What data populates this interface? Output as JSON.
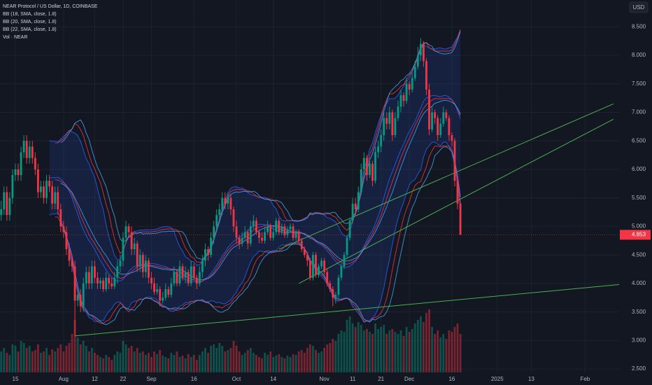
{
  "chart_data": {
    "type": "candlestick",
    "title": "NEAR Protocol / US Dollar, 1D, COINBASE",
    "currency": "USD",
    "indicators": [
      {
        "label": "BB (18, SMA, close, 1.8)",
        "period": 18,
        "mult": 1.8,
        "color": "#2962ff"
      },
      {
        "label": "BB (20, SMA, close, 1.8)",
        "period": 20,
        "mult": 1.8,
        "color": "#f23645"
      },
      {
        "label": "BB (22, SMA, close, 1.8)",
        "period": 22,
        "mult": 1.8,
        "color": "#42a5f5"
      }
    ],
    "volume_label": "Vol · NEAR",
    "up_color": "#089981",
    "down_color": "#f23645",
    "xlim": [
      "2024-07-10",
      "2025-02-13"
    ],
    "xticks": [
      {
        "value": "2024-07-15",
        "label": "15"
      },
      {
        "value": "2024-08-01",
        "label": "Aug"
      },
      {
        "value": "2024-08-12",
        "label": "12"
      },
      {
        "value": "2024-08-22",
        "label": "22"
      },
      {
        "value": "2024-09-01",
        "label": "Sep"
      },
      {
        "value": "2024-09-16",
        "label": "16"
      },
      {
        "value": "2024-10-01",
        "label": "Oct"
      },
      {
        "value": "2024-10-14",
        "label": "14"
      },
      {
        "value": "2024-11-01",
        "label": "Nov"
      },
      {
        "value": "2024-11-11",
        "label": "11"
      },
      {
        "value": "2024-11-21",
        "label": "21"
      },
      {
        "value": "2024-12-01",
        "label": "Dec"
      },
      {
        "value": "2024-12-16",
        "label": "16"
      },
      {
        "value": "2025-01-01",
        "label": "2025"
      },
      {
        "value": "2025-01-13",
        "label": "13"
      },
      {
        "value": "2025-02-01",
        "label": "Feb"
      }
    ],
    "ylim": [
      2.44,
      8.97
    ],
    "yticks": [
      {
        "value": 2.5,
        "label": "2.500"
      },
      {
        "value": 3,
        "label": "3.000"
      },
      {
        "value": 3.5,
        "label": "3.500"
      },
      {
        "value": 4,
        "label": "4.000"
      },
      {
        "value": 4.5,
        "label": "4.500"
      },
      {
        "value": 5,
        "label": "5.000"
      },
      {
        "value": 5.5,
        "label": "5.500"
      },
      {
        "value": 6,
        "label": "6.000"
      },
      {
        "value": 6.5,
        "label": "6.500"
      },
      {
        "value": 7,
        "label": "7.000"
      },
      {
        "value": 7.5,
        "label": "7.500"
      },
      {
        "value": 8,
        "label": "8.000"
      },
      {
        "value": 8.5,
        "label": "8.500"
      }
    ],
    "grid": true,
    "trendlines": [
      {
        "x": [
          "2024-08-05",
          "2025-02-13"
        ],
        "y": [
          3.08,
          3.98
        ],
        "color": "#4caf50"
      },
      {
        "x": [
          "2024-10-23",
          "2025-02-11"
        ],
        "y": [
          4.0,
          6.88
        ],
        "color": "#4caf50"
      },
      {
        "x": [
          "2024-10-16",
          "2025-02-11"
        ],
        "y": [
          4.6,
          7.15
        ],
        "color": "#4caf50"
      }
    ],
    "ohlc": [
      [
        5.2,
        5.45,
        5.1,
        5.3
      ],
      [
        5.3,
        5.7,
        5.2,
        5.6
      ],
      [
        5.6,
        5.7,
        5.1,
        5.2
      ],
      [
        5.2,
        5.6,
        5.1,
        5.5
      ],
      [
        5.5,
        6.0,
        5.4,
        5.9
      ],
      [
        5.9,
        6.1,
        5.8,
        6.0
      ],
      [
        6.0,
        6.1,
        5.8,
        5.9
      ],
      [
        5.9,
        6.4,
        5.8,
        6.3
      ],
      [
        6.3,
        6.6,
        6.2,
        6.5
      ],
      [
        6.5,
        6.6,
        6.1,
        6.2
      ],
      [
        6.2,
        6.5,
        6.1,
        6.4
      ],
      [
        6.4,
        6.5,
        6.1,
        6.2
      ],
      [
        6.2,
        6.3,
        5.9,
        6.0
      ],
      [
        6.0,
        6.1,
        5.5,
        5.6
      ],
      [
        5.6,
        5.8,
        5.5,
        5.7
      ],
      [
        5.7,
        5.8,
        5.4,
        5.5
      ],
      [
        5.5,
        5.9,
        5.4,
        5.8
      ],
      [
        5.8,
        5.9,
        5.6,
        5.7
      ],
      [
        5.7,
        5.8,
        5.3,
        5.4
      ],
      [
        5.4,
        5.7,
        5.3,
        5.6
      ],
      [
        5.6,
        5.7,
        5.2,
        5.3
      ],
      [
        5.3,
        5.4,
        4.9,
        5.0
      ],
      [
        5.0,
        5.1,
        4.8,
        4.9
      ],
      [
        4.9,
        5.0,
        4.5,
        4.6
      ],
      [
        4.6,
        4.7,
        4.3,
        4.4
      ],
      [
        4.4,
        4.5,
        4.2,
        4.3
      ],
      [
        4.3,
        4.4,
        3.08,
        3.7
      ],
      [
        3.7,
        3.9,
        3.6,
        3.8
      ],
      [
        3.8,
        3.9,
        3.5,
        3.6
      ],
      [
        3.6,
        4.1,
        3.5,
        4.0
      ],
      [
        4.0,
        4.3,
        3.9,
        4.2
      ],
      [
        4.2,
        4.3,
        3.9,
        4.0
      ],
      [
        4.0,
        4.4,
        3.9,
        4.3
      ],
      [
        4.3,
        4.4,
        4.0,
        4.1
      ],
      [
        4.1,
        4.2,
        3.9,
        4.0
      ],
      [
        4.0,
        4.1,
        3.9,
        4.05
      ],
      [
        4.05,
        4.1,
        3.85,
        3.9
      ],
      [
        3.9,
        4.2,
        3.85,
        4.1
      ],
      [
        4.1,
        4.15,
        3.9,
        4.0
      ],
      [
        4.0,
        4.1,
        3.9,
        3.95
      ],
      [
        3.95,
        4.2,
        3.9,
        4.1
      ],
      [
        4.1,
        4.4,
        4.0,
        4.3
      ],
      [
        4.3,
        4.5,
        4.2,
        4.4
      ],
      [
        4.4,
        4.9,
        4.3,
        4.8
      ],
      [
        4.8,
        5.1,
        4.7,
        5.0
      ],
      [
        5.0,
        5.05,
        4.8,
        4.9
      ],
      [
        4.9,
        5.0,
        4.5,
        4.6
      ],
      [
        4.6,
        4.8,
        4.5,
        4.7
      ],
      [
        4.7,
        4.75,
        4.2,
        4.3
      ],
      [
        4.3,
        4.6,
        4.2,
        4.5
      ],
      [
        4.5,
        4.55,
        4.1,
        4.2
      ],
      [
        4.2,
        4.5,
        4.1,
        4.4
      ],
      [
        4.4,
        4.45,
        4.0,
        4.1
      ],
      [
        4.1,
        4.2,
        3.9,
        4.0
      ],
      [
        4.0,
        4.1,
        3.8,
        3.85
      ],
      [
        3.85,
        4.0,
        3.8,
        3.9
      ],
      [
        3.9,
        3.95,
        3.6,
        3.7
      ],
      [
        3.7,
        3.85,
        3.65,
        3.75
      ],
      [
        3.75,
        4.0,
        3.7,
        3.9
      ],
      [
        3.9,
        3.95,
        3.75,
        3.8
      ],
      [
        3.8,
        4.1,
        3.75,
        4.0
      ],
      [
        4.0,
        4.3,
        3.95,
        4.2
      ],
      [
        4.2,
        4.25,
        3.95,
        4.0
      ],
      [
        4.0,
        4.4,
        3.95,
        4.3
      ],
      [
        4.3,
        4.35,
        4.05,
        4.1
      ],
      [
        4.1,
        4.3,
        4.0,
        4.2
      ],
      [
        4.2,
        4.25,
        3.95,
        4.0
      ],
      [
        4.0,
        4.4,
        3.95,
        4.3
      ],
      [
        4.3,
        4.35,
        4.05,
        4.1
      ],
      [
        4.1,
        4.15,
        3.9,
        4.0
      ],
      [
        4.0,
        4.3,
        3.95,
        4.2
      ],
      [
        4.2,
        4.5,
        4.1,
        4.4
      ],
      [
        4.4,
        4.7,
        4.3,
        4.6
      ],
      [
        4.6,
        4.65,
        4.4,
        4.5
      ],
      [
        4.5,
        4.9,
        4.45,
        4.8
      ],
      [
        4.8,
        5.1,
        4.7,
        5.0
      ],
      [
        5.0,
        5.3,
        4.9,
        5.2
      ],
      [
        5.2,
        5.4,
        5.1,
        5.3
      ],
      [
        5.3,
        5.6,
        5.2,
        5.5
      ],
      [
        5.5,
        5.6,
        5.3,
        5.4
      ],
      [
        5.4,
        5.6,
        5.3,
        5.5
      ],
      [
        5.5,
        5.55,
        5.2,
        5.3
      ],
      [
        5.3,
        5.35,
        4.9,
        5.0
      ],
      [
        5.0,
        5.1,
        4.7,
        4.8
      ],
      [
        4.8,
        4.85,
        4.6,
        4.7
      ],
      [
        4.7,
        4.9,
        4.65,
        4.8
      ],
      [
        4.8,
        5.0,
        4.75,
        4.9
      ],
      [
        4.9,
        4.95,
        4.6,
        4.7
      ],
      [
        4.7,
        5.1,
        4.65,
        5.0
      ],
      [
        5.0,
        5.2,
        4.95,
        5.1
      ],
      [
        5.1,
        5.15,
        4.85,
        4.9
      ],
      [
        4.9,
        4.95,
        4.7,
        4.8
      ],
      [
        4.8,
        4.9,
        4.7,
        4.75
      ],
      [
        4.75,
        5.0,
        4.7,
        4.9
      ],
      [
        4.9,
        5.1,
        4.85,
        5.0
      ],
      [
        5.0,
        5.05,
        4.75,
        4.8
      ],
      [
        4.8,
        5.0,
        4.75,
        4.9
      ],
      [
        4.9,
        5.15,
        4.85,
        5.1
      ],
      [
        5.1,
        5.15,
        4.85,
        4.9
      ],
      [
        4.9,
        5.05,
        4.85,
        5.0
      ],
      [
        5.0,
        5.05,
        4.8,
        4.85
      ],
      [
        4.85,
        5.0,
        4.8,
        4.95
      ],
      [
        4.95,
        5.05,
        4.9,
        5.0
      ],
      [
        5.0,
        5.05,
        4.75,
        4.8
      ],
      [
        4.8,
        4.95,
        4.75,
        4.9
      ],
      [
        4.9,
        4.95,
        4.7,
        4.75
      ],
      [
        4.75,
        4.8,
        4.55,
        4.6
      ],
      [
        4.6,
        4.65,
        4.45,
        4.5
      ],
      [
        4.5,
        4.55,
        4.3,
        4.4
      ],
      [
        4.4,
        4.45,
        4.05,
        4.1
      ],
      [
        4.1,
        4.55,
        4.05,
        4.5
      ],
      [
        4.5,
        4.55,
        4.1,
        4.15
      ],
      [
        4.15,
        4.35,
        4.1,
        4.3
      ],
      [
        4.3,
        4.45,
        4.25,
        4.4
      ],
      [
        4.4,
        4.45,
        4.15,
        4.2
      ],
      [
        4.2,
        4.25,
        3.95,
        4.0
      ],
      [
        4.0,
        4.05,
        3.85,
        3.9
      ],
      [
        3.9,
        3.95,
        3.6,
        3.75
      ],
      [
        3.75,
        3.85,
        3.65,
        3.8
      ],
      [
        3.8,
        4.15,
        3.75,
        4.1
      ],
      [
        4.1,
        4.35,
        4.05,
        4.3
      ],
      [
        4.3,
        4.55,
        4.25,
        4.5
      ],
      [
        4.5,
        4.85,
        4.45,
        4.8
      ],
      [
        4.8,
        5.15,
        4.75,
        5.1
      ],
      [
        5.1,
        5.5,
        5.05,
        5.4
      ],
      [
        5.4,
        5.5,
        5.2,
        5.3
      ],
      [
        5.3,
        5.7,
        5.25,
        5.6
      ],
      [
        5.6,
        6.1,
        5.55,
        6.0
      ],
      [
        6.0,
        6.3,
        5.9,
        6.2
      ],
      [
        6.2,
        6.25,
        5.8,
        5.9
      ],
      [
        5.9,
        6.2,
        5.85,
        6.1
      ],
      [
        6.1,
        6.15,
        5.7,
        5.8
      ],
      [
        5.8,
        6.4,
        5.75,
        6.3
      ],
      [
        6.3,
        6.5,
        6.2,
        6.4
      ],
      [
        6.4,
        6.7,
        6.3,
        6.6
      ],
      [
        6.6,
        7.0,
        6.5,
        6.9
      ],
      [
        6.9,
        7.0,
        6.7,
        6.8
      ],
      [
        6.8,
        7.1,
        6.7,
        7.0
      ],
      [
        7.0,
        7.05,
        6.5,
        6.6
      ],
      [
        6.6,
        7.0,
        6.55,
        6.9
      ],
      [
        6.9,
        7.2,
        6.85,
        7.1
      ],
      [
        7.1,
        7.4,
        7.0,
        7.3
      ],
      [
        7.3,
        7.35,
        7.1,
        7.2
      ],
      [
        7.2,
        7.6,
        7.15,
        7.5
      ],
      [
        7.5,
        7.55,
        7.3,
        7.4
      ],
      [
        7.4,
        7.7,
        7.35,
        7.6
      ],
      [
        7.6,
        7.9,
        7.55,
        7.8
      ],
      [
        7.8,
        8.15,
        7.75,
        8.0
      ],
      [
        8.0,
        8.3,
        7.9,
        8.2
      ],
      [
        8.2,
        8.25,
        7.8,
        7.9
      ],
      [
        7.9,
        7.95,
        7.3,
        7.4
      ],
      [
        7.4,
        7.5,
        6.6,
        6.7
      ],
      [
        6.7,
        7.1,
        6.65,
        7.0
      ],
      [
        7.0,
        7.05,
        6.8,
        6.9
      ],
      [
        6.9,
        6.95,
        6.5,
        6.6
      ],
      [
        6.6,
        6.9,
        6.55,
        6.8
      ],
      [
        6.8,
        7.1,
        6.75,
        7.0
      ],
      [
        7.0,
        7.05,
        6.85,
        6.9
      ],
      [
        6.9,
        6.95,
        6.5,
        6.6
      ],
      [
        6.6,
        6.65,
        6.4,
        6.5
      ],
      [
        6.5,
        6.55,
        5.7,
        5.8
      ],
      [
        5.8,
        5.9,
        5.3,
        5.4
      ],
      [
        5.4,
        5.45,
        4.85,
        4.853
      ]
    ],
    "volume": [
      30,
      35,
      28,
      25,
      40,
      38,
      30,
      45,
      42,
      35,
      38,
      30,
      32,
      40,
      28,
      30,
      35,
      25,
      33,
      30,
      35,
      40,
      30,
      38,
      42,
      55,
      75,
      50,
      40,
      45,
      38,
      30,
      35,
      28,
      25,
      22,
      20,
      25,
      22,
      18,
      25,
      30,
      28,
      45,
      40,
      35,
      38,
      30,
      35,
      28,
      30,
      25,
      28,
      22,
      30,
      26,
      32,
      24,
      22,
      20,
      28,
      25,
      30,
      22,
      24,
      20,
      26,
      22,
      25,
      18,
      25,
      30,
      35,
      28,
      38,
      40,
      35,
      42,
      38,
      30,
      32,
      35,
      45,
      38,
      30,
      25,
      28,
      32,
      35,
      28,
      25,
      22,
      20,
      28,
      25,
      30,
      22,
      24,
      26,
      22,
      20,
      24,
      22,
      26,
      25,
      30,
      32,
      28,
      35,
      40,
      38,
      32,
      28,
      30,
      35,
      40,
      42,
      48,
      45,
      55,
      60,
      58,
      75,
      80,
      70,
      65,
      72,
      68,
      60,
      62,
      58,
      55,
      70,
      62,
      65,
      68,
      55,
      60,
      62,
      58,
      55,
      60,
      52,
      65,
      58,
      62,
      70,
      75,
      80,
      72,
      85,
      90,
      65,
      55,
      60,
      50,
      55,
      48,
      60,
      58,
      65,
      70,
      55
    ]
  }
}
